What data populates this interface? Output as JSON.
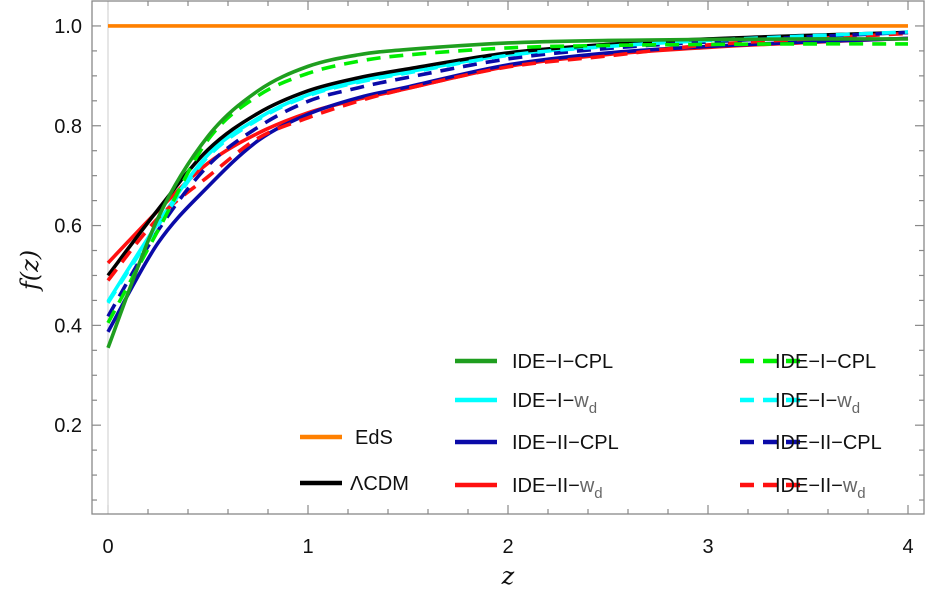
{
  "chart_data": {
    "type": "line",
    "title": "",
    "xlabel": "z",
    "ylabel": "f(z)",
    "xlim": [
      -0.08,
      4.08
    ],
    "ylim": [
      0.022,
      1.05
    ],
    "x_ticks": [
      "0",
      "1",
      "2",
      "3",
      "4"
    ],
    "y_ticks": [
      "0.2",
      "0.4",
      "0.6",
      "0.8",
      "1.0"
    ],
    "grid": false,
    "legend_placement": "bottom-right",
    "x": [
      0,
      0.25,
      0.5,
      0.75,
      1,
      1.25,
      1.5,
      2,
      2.5,
      3,
      3.5,
      4
    ],
    "series": [
      {
        "name": "EdS",
        "color": "#ff8000",
        "style": "solid",
        "values": [
          1,
          1,
          1,
          1,
          1,
          1,
          1,
          1,
          1,
          1,
          1,
          1
        ]
      },
      {
        "name": "ΛCDM",
        "color": "#000000",
        "style": "solid",
        "values": [
          0.5,
          0.632,
          0.752,
          0.825,
          0.87,
          0.896,
          0.914,
          0.946,
          0.963,
          0.974,
          0.981,
          0.987
        ]
      },
      {
        "name": "IDE−I−CPL",
        "color": "#1f9e1f",
        "style": "solid",
        "values": [
          0.355,
          0.615,
          0.779,
          0.87,
          0.919,
          0.942,
          0.953,
          0.966,
          0.971,
          0.973,
          0.974,
          0.974
        ]
      },
      {
        "name": "IDE−I−w",
        "sub": "d",
        "color": "#00ffff",
        "style": "solid",
        "values": [
          0.448,
          0.605,
          0.742,
          0.815,
          0.862,
          0.889,
          0.908,
          0.942,
          0.96,
          0.972,
          0.98,
          0.987
        ]
      },
      {
        "name": "IDE−II−CPL",
        "color": "#0a0aa8",
        "style": "solid",
        "values": [
          0.387,
          0.565,
          0.678,
          0.77,
          0.823,
          0.856,
          0.878,
          0.922,
          0.946,
          0.959,
          0.968,
          0.975
        ]
      },
      {
        "name": "IDE−II−w",
        "sub": "d",
        "color": "#ff1010",
        "style": "solid",
        "values": [
          0.525,
          0.63,
          0.725,
          0.785,
          0.826,
          0.853,
          0.875,
          0.919,
          0.943,
          0.957,
          0.967,
          0.975
        ]
      },
      {
        "name": "IDE−I−CPL",
        "color": "#00ee00",
        "style": "dashed",
        "values": [
          0.405,
          0.59,
          0.772,
          0.86,
          0.905,
          0.929,
          0.942,
          0.956,
          0.961,
          0.963,
          0.964,
          0.964
        ]
      },
      {
        "name": "IDE−I−w",
        "sub": "d",
        "color": "#00ffff",
        "style": "dashed",
        "values": [
          0.445,
          0.6,
          0.738,
          0.812,
          0.86,
          0.887,
          0.906,
          0.941,
          0.959,
          0.971,
          0.98,
          0.988
        ]
      },
      {
        "name": "IDE−II−CPL",
        "color": "#0a0aa8",
        "style": "dashed",
        "values": [
          0.418,
          0.59,
          0.72,
          0.797,
          0.849,
          0.876,
          0.897,
          0.934,
          0.955,
          0.968,
          0.978,
          0.987
        ]
      },
      {
        "name": "IDE−II−w",
        "sub": "d",
        "color": "#ff1010",
        "style": "dashed",
        "values": [
          0.49,
          0.615,
          0.698,
          0.775,
          0.816,
          0.849,
          0.875,
          0.918,
          0.94,
          0.962,
          0.974,
          0.985
        ]
      }
    ]
  }
}
